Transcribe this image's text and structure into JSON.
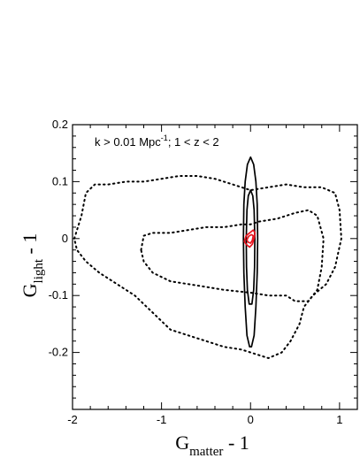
{
  "chart_data": {
    "type": "contour",
    "title": "",
    "xlabel": {
      "main": "G",
      "sub": "matter",
      "suffix": " - 1"
    },
    "ylabel": {
      "main": "G",
      "sub": "light",
      "suffix": " - 1"
    },
    "xlim": [
      -2,
      1.2
    ],
    "ylim": [
      -0.3,
      0.2
    ],
    "xticks": [
      -2,
      -1,
      0,
      1
    ],
    "xtick_labels": [
      "-2",
      "-1",
      "0",
      "1"
    ],
    "yticks": [
      -0.2,
      -0.1,
      0,
      0.1,
      0.2
    ],
    "ytick_labels": [
      "-0.2",
      "-0.1",
      "0",
      "0.1",
      "0.2"
    ],
    "annotation": {
      "pre": "k > 0.01 Mpc",
      "sup": "-1",
      "post": "; 1 < z < 2"
    },
    "series": [
      {
        "style": "dotted",
        "color": "#000000",
        "points": [
          [
            -1.98,
            0.0
          ],
          [
            -1.9,
            0.04
          ],
          [
            -1.85,
            0.08
          ],
          [
            -1.75,
            0.095
          ],
          [
            -1.6,
            0.095
          ],
          [
            -1.4,
            0.1
          ],
          [
            -1.2,
            0.1
          ],
          [
            -1.0,
            0.105
          ],
          [
            -0.8,
            0.11
          ],
          [
            -0.6,
            0.11
          ],
          [
            -0.4,
            0.105
          ],
          [
            -0.3,
            0.1
          ],
          [
            -0.1,
            0.09
          ],
          [
            0.0,
            0.085
          ],
          [
            0.2,
            0.09
          ],
          [
            0.4,
            0.095
          ],
          [
            0.6,
            0.09
          ],
          [
            0.8,
            0.09
          ],
          [
            0.95,
            0.08
          ],
          [
            1.0,
            0.05
          ],
          [
            1.02,
            0.0
          ],
          [
            0.95,
            -0.05
          ],
          [
            0.85,
            -0.08
          ],
          [
            0.7,
            -0.1
          ],
          [
            0.6,
            -0.12
          ],
          [
            0.55,
            -0.15
          ],
          [
            0.45,
            -0.18
          ],
          [
            0.35,
            -0.2
          ],
          [
            0.2,
            -0.21
          ],
          [
            0.0,
            -0.2
          ],
          [
            -0.1,
            -0.195
          ],
          [
            -0.3,
            -0.19
          ],
          [
            -0.5,
            -0.18
          ],
          [
            -0.7,
            -0.17
          ],
          [
            -0.9,
            -0.16
          ],
          [
            -1.1,
            -0.13
          ],
          [
            -1.3,
            -0.1
          ],
          [
            -1.5,
            -0.08
          ],
          [
            -1.7,
            -0.06
          ],
          [
            -1.85,
            -0.04
          ],
          [
            -1.95,
            -0.02
          ],
          [
            -1.98,
            0.0
          ]
        ]
      },
      {
        "style": "dotted",
        "color": "#000000",
        "points": [
          [
            -1.23,
            -0.02
          ],
          [
            -1.2,
            0.005
          ],
          [
            -1.1,
            0.01
          ],
          [
            -0.9,
            0.01
          ],
          [
            -0.7,
            0.015
          ],
          [
            -0.5,
            0.02
          ],
          [
            -0.3,
            0.02
          ],
          [
            -0.1,
            0.025
          ],
          [
            0.0,
            0.025
          ],
          [
            0.1,
            0.03
          ],
          [
            0.3,
            0.035
          ],
          [
            0.5,
            0.045
          ],
          [
            0.65,
            0.05
          ],
          [
            0.75,
            0.04
          ],
          [
            0.82,
            0.0
          ],
          [
            0.8,
            -0.05
          ],
          [
            0.75,
            -0.09
          ],
          [
            0.65,
            -0.11
          ],
          [
            0.5,
            -0.11
          ],
          [
            0.4,
            -0.1
          ],
          [
            0.2,
            -0.1
          ],
          [
            0.0,
            -0.095
          ],
          [
            -0.3,
            -0.09
          ],
          [
            -0.5,
            -0.085
          ],
          [
            -0.7,
            -0.08
          ],
          [
            -0.9,
            -0.075
          ],
          [
            -1.1,
            -0.06
          ],
          [
            -1.2,
            -0.04
          ],
          [
            -1.23,
            -0.02
          ]
        ]
      },
      {
        "style": "solid",
        "color": "#000000",
        "points": [
          [
            0.0,
            0.143
          ],
          [
            0.035,
            0.13
          ],
          [
            0.06,
            0.1
          ],
          [
            0.075,
            0.06
          ],
          [
            0.08,
            0.0
          ],
          [
            0.075,
            -0.06
          ],
          [
            0.06,
            -0.12
          ],
          [
            0.04,
            -0.17
          ],
          [
            0.01,
            -0.19
          ],
          [
            -0.01,
            -0.19
          ],
          [
            -0.04,
            -0.17
          ],
          [
            -0.06,
            -0.12
          ],
          [
            -0.075,
            -0.06
          ],
          [
            -0.08,
            0.0
          ],
          [
            -0.075,
            0.06
          ],
          [
            -0.06,
            0.1
          ],
          [
            -0.035,
            0.13
          ],
          [
            0.0,
            0.143
          ]
        ]
      },
      {
        "style": "solid",
        "color": "#000000",
        "points": [
          [
            0.0,
            0.085
          ],
          [
            0.025,
            0.075
          ],
          [
            0.04,
            0.05
          ],
          [
            0.048,
            0.0
          ],
          [
            0.045,
            -0.05
          ],
          [
            0.035,
            -0.09
          ],
          [
            0.015,
            -0.115
          ],
          [
            -0.015,
            -0.115
          ],
          [
            -0.035,
            -0.09
          ],
          [
            -0.045,
            -0.05
          ],
          [
            -0.048,
            0.0
          ],
          [
            -0.04,
            0.05
          ],
          [
            -0.025,
            0.075
          ],
          [
            0.0,
            0.085
          ]
        ]
      },
      {
        "style": "solid",
        "color": "#e8141e",
        "points": [
          [
            0.05,
            0.01
          ],
          [
            0.04,
            0.0
          ],
          [
            0.02,
            -0.01
          ],
          [
            -0.01,
            -0.015
          ],
          [
            -0.05,
            -0.01
          ],
          [
            -0.07,
            -0.005
          ],
          [
            -0.05,
            0.005
          ],
          [
            -0.01,
            0.01
          ],
          [
            0.03,
            0.015
          ],
          [
            0.05,
            0.01
          ]
        ]
      },
      {
        "style": "solid",
        "color": "#e8141e",
        "points": [
          [
            0.03,
            0.005
          ],
          [
            0.02,
            -0.003
          ],
          [
            0.0,
            -0.008
          ],
          [
            -0.03,
            -0.006
          ],
          [
            -0.04,
            -0.002
          ],
          [
            -0.02,
            0.004
          ],
          [
            0.01,
            0.007
          ],
          [
            0.03,
            0.005
          ]
        ]
      }
    ]
  }
}
